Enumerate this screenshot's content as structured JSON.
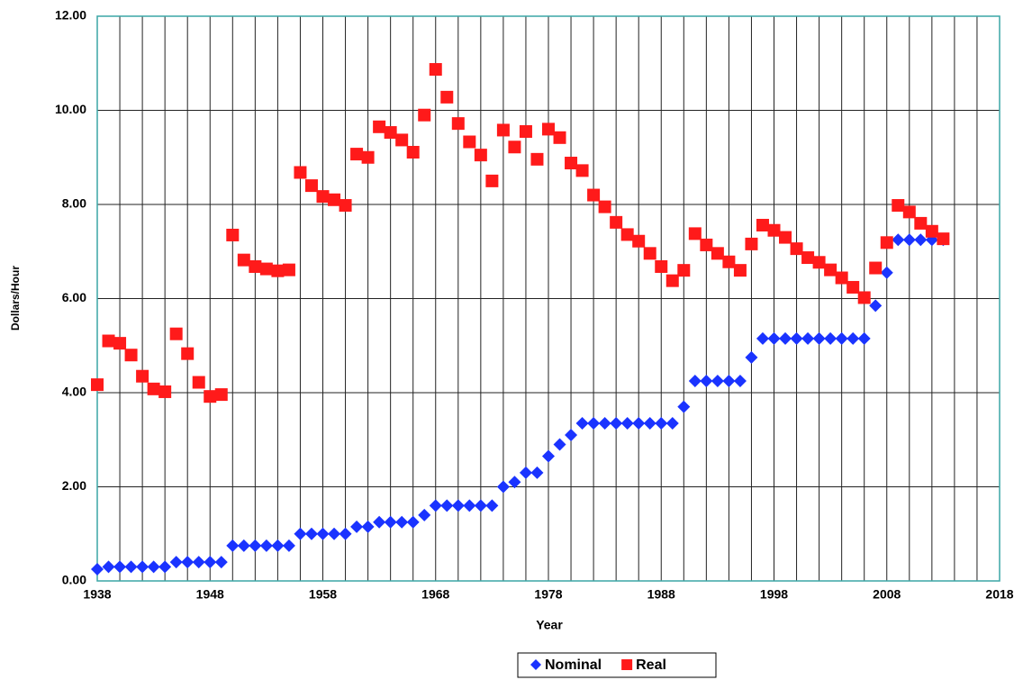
{
  "chart_data": {
    "type": "scatter",
    "xlabel": "Year",
    "ylabel": "Dollars/Hour",
    "x": [
      1938,
      1939,
      1940,
      1941,
      1942,
      1943,
      1944,
      1945,
      1946,
      1947,
      1948,
      1949,
      1950,
      1951,
      1952,
      1953,
      1954,
      1955,
      1956,
      1957,
      1958,
      1959,
      1960,
      1961,
      1962,
      1963,
      1964,
      1965,
      1966,
      1967,
      1968,
      1969,
      1970,
      1971,
      1972,
      1973,
      1974,
      1975,
      1976,
      1977,
      1978,
      1979,
      1980,
      1981,
      1982,
      1983,
      1984,
      1985,
      1986,
      1987,
      1988,
      1989,
      1990,
      1991,
      1992,
      1993,
      1994,
      1995,
      1996,
      1997,
      1998,
      1999,
      2000,
      2001,
      2002,
      2003,
      2004,
      2005,
      2006,
      2007,
      2008,
      2009,
      2010,
      2011,
      2012,
      2013
    ],
    "series": [
      {
        "name": "Nominal",
        "color": "#1a33ff",
        "marker": "diamond",
        "values": [
          0.25,
          0.3,
          0.3,
          0.3,
          0.3,
          0.3,
          0.3,
          0.4,
          0.4,
          0.4,
          0.4,
          0.4,
          0.75,
          0.75,
          0.75,
          0.75,
          0.75,
          0.75,
          1.0,
          1.0,
          1.0,
          1.0,
          1.0,
          1.15,
          1.15,
          1.25,
          1.25,
          1.25,
          1.25,
          1.4,
          1.6,
          1.6,
          1.6,
          1.6,
          1.6,
          1.6,
          2.0,
          2.1,
          2.3,
          2.3,
          2.65,
          2.9,
          3.1,
          3.35,
          3.35,
          3.35,
          3.35,
          3.35,
          3.35,
          3.35,
          3.35,
          3.35,
          3.7,
          4.25,
          4.25,
          4.25,
          4.25,
          4.25,
          4.75,
          5.15,
          5.15,
          5.15,
          5.15,
          5.15,
          5.15,
          5.15,
          5.15,
          5.15,
          5.15,
          5.85,
          6.55,
          7.25,
          7.25,
          7.25,
          7.25,
          7.25
        ]
      },
      {
        "name": "Real",
        "color": "#ff1a1a",
        "marker": "square",
        "values": [
          4.17,
          5.1,
          5.05,
          4.8,
          4.35,
          4.08,
          4.02,
          5.25,
          4.83,
          4.22,
          3.92,
          3.96,
          7.35,
          6.82,
          6.68,
          6.63,
          6.59,
          6.61,
          8.68,
          8.4,
          8.17,
          8.1,
          7.98,
          9.07,
          9.0,
          9.65,
          9.53,
          9.37,
          9.11,
          9.9,
          10.87,
          10.28,
          9.72,
          9.33,
          9.05,
          8.5,
          9.58,
          9.22,
          9.55,
          8.96,
          9.6,
          9.42,
          8.88,
          8.72,
          8.2,
          7.95,
          7.62,
          7.36,
          7.22,
          6.96,
          6.68,
          6.38,
          6.6,
          7.38,
          7.14,
          6.96,
          6.78,
          6.6,
          7.16,
          7.56,
          7.45,
          7.3,
          7.06,
          6.87,
          6.77,
          6.61,
          6.44,
          6.24,
          6.02,
          6.65,
          7.19,
          7.98,
          7.84,
          7.6,
          7.43,
          7.27
        ]
      }
    ],
    "xlim": [
      1938,
      2018
    ],
    "xticks": [
      1938,
      1948,
      1958,
      1968,
      1978,
      1988,
      1998,
      2008,
      2018
    ],
    "x_minor_ticks": [
      1940,
      1942,
      1944,
      1946,
      1950,
      1952,
      1954,
      1956,
      1960,
      1962,
      1964,
      1966,
      1970,
      1972,
      1974,
      1976,
      1980,
      1982,
      1984,
      1986,
      1990,
      1992,
      1994,
      1996,
      2000,
      2002,
      2004,
      2006,
      2010,
      2012,
      2014,
      2016
    ],
    "ylim": [
      0,
      12
    ],
    "yticks": [
      {
        "value": 0,
        "label": "0.00"
      },
      {
        "value": 2,
        "label": "2.00"
      },
      {
        "value": 4,
        "label": "4.00"
      },
      {
        "value": 6,
        "label": "6.00"
      },
      {
        "value": 8,
        "label": "8.00"
      },
      {
        "value": 10,
        "label": "10.00"
      },
      {
        "value": 12,
        "label": "12.00"
      }
    ],
    "grid": true,
    "legend": "bottom"
  }
}
